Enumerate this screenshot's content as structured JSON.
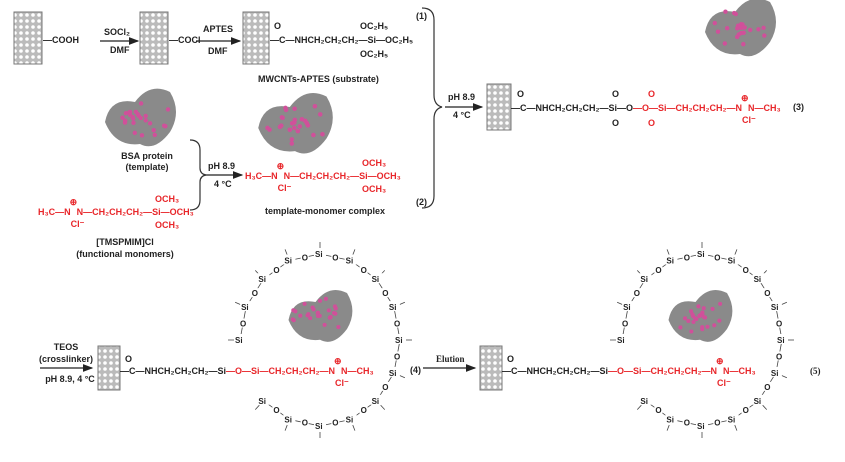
{
  "colors": {
    "text": "#222222",
    "red": "#e8262a",
    "protein_gray": "#8a8a8a",
    "protein_pink": "#d0509a",
    "tube": "#777777"
  },
  "icons": [
    "nanotube-icon",
    "protein-icon",
    "brace-icon",
    "arrow-icon",
    "silica-network"
  ],
  "reaction1": {
    "cooh": "—COOH",
    "reagent1_top": "SOCl₂",
    "reagent1_bottom": "DMF",
    "cocl": "—COCl",
    "reagent2_top": "APTES",
    "reagent2_bottom": "DMF",
    "carbonyl_o": "O",
    "chain": "—C—NHCH₂CH₂CH₂—Si—OC₂H₅",
    "oet_top": "OC₂H₅",
    "oet_bottom": "OC₂H₅",
    "label": "MWCNTs-APTES (substrate)",
    "number": "(1)"
  },
  "reaction2": {
    "protein_label": "BSA protein",
    "protein_sublabel": "(template)",
    "monomer_left": "H₃C—N",
    "monomer_right": "N—CH₂CH₂CH₂—Si—OCH₃",
    "ome_top": "OCH₃",
    "ome_bottom": "OCH₃",
    "chloride": "Cl⁻",
    "plus": "⊕",
    "monomer_label": "[TMSPMIM]Cl",
    "monomer_sublabel": "(functional monomers)",
    "cond_top": "pH 8.9",
    "cond_bottom": "4 °C",
    "complex_label": "template-monomer complex",
    "number": "(2)"
  },
  "reaction3": {
    "cond_top": "pH 8.9",
    "cond_bottom": "4 °C",
    "carbonyl_o": "O",
    "chain_black": "—C—NHCH₂CH₂CH₂—Si—O",
    "chain_red": "—O—Si—CH₂CH₂CH₂—N",
    "tail": "N—CH₃",
    "o_label": "O",
    "chloride": "Cl⁻",
    "plus": "⊕",
    "number": "(3)"
  },
  "reaction4": {
    "cond_top": "TEOS",
    "cond_mid": "(crosslinker)",
    "cond_bottom": "pH 8.9, 4 °C",
    "carbonyl_o": "O",
    "chain_black": "—C—NHCH₂CH₂CH₂—Si",
    "chain_red": "—O—Si—CH₂CH₂CH₂—N",
    "tail": "N—CH₃",
    "o_label": "O",
    "chloride": "Cl⁻",
    "plus": "⊕",
    "number": "(4)",
    "si_label": "Si"
  },
  "reaction5": {
    "elution": "Elution",
    "number": "(5)"
  }
}
